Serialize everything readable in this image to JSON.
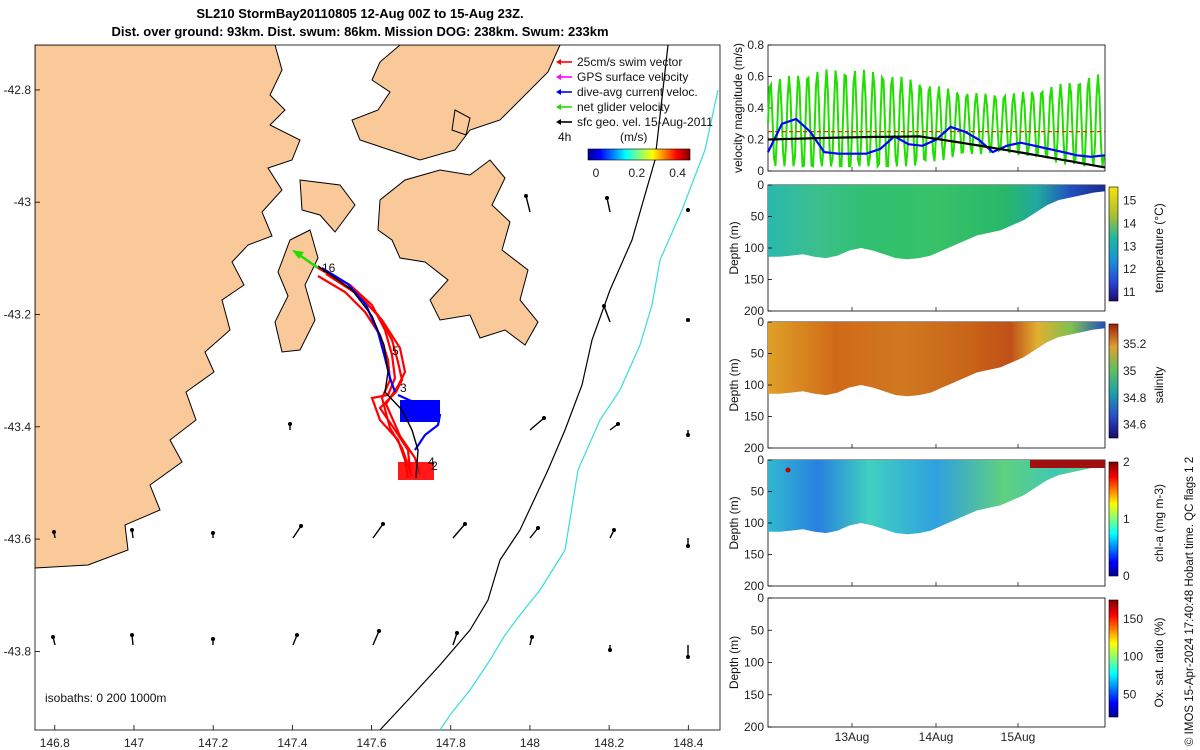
{
  "title_line1": "SL210 StormBay20110805 12-Aug 00Z to 15-Aug 23Z.",
  "title_line2": "Dist. over ground: 93km. Dist. swum: 86km. Mission DOG: 238km. Swum: 233km",
  "credit": "© IMOS 15-Apr-2024 17:40:48 Hobart time. QC flags 1  2",
  "colors": {
    "land": "#f9c99a",
    "sea": "#ffffff",
    "track_red": "#ff0000",
    "track_blue": "#0000ff",
    "net_green": "#22dd00",
    "isobath_200": "#000000",
    "isobath_1000": "#33dddd"
  },
  "chart_data": [
    {
      "type": "map",
      "name": "glider-track-map",
      "x_ticks": [
        "146.8",
        "147",
        "147.2",
        "147.4",
        "147.6",
        "147.8",
        "148",
        "148.2",
        "148.4"
      ],
      "y_ticks": [
        "-42.8",
        "-43",
        "-43.2",
        "-43.4",
        "-43.6",
        "-43.8"
      ],
      "xlim": [
        146.75,
        148.48
      ],
      "ylim": [
        -43.94,
        -42.72
      ],
      "legend": [
        {
          "label": "25cm/s swim vector",
          "color": "#ff0000"
        },
        {
          "label": "GPS surface velocity",
          "color": "#ff00ff"
        },
        {
          "label": "dive-avg current veloc.",
          "color": "#0000ff"
        },
        {
          "label": "net glider velocity",
          "color": "#22dd00"
        },
        {
          "label": "sfc geo. vel. 15-Aug-2011",
          "color": "#000000"
        }
      ],
      "speed_scale_label": "4h",
      "colorbar": {
        "title": "(m/s)",
        "ticks": [
          "0",
          "0.2",
          "0.4"
        ],
        "range": [
          0,
          0.5
        ]
      },
      "track_labels": [
        "16",
        "5",
        "3",
        "4",
        "2"
      ],
      "isobaths_label": "isobaths: 0   200  1000m"
    },
    {
      "type": "line",
      "name": "velocity-magnitude",
      "ylabel": "velocity magnitude (m/s)",
      "ylim": [
        0,
        0.8
      ],
      "y_ticks": [
        "0",
        "0.2",
        "0.4",
        "0.6",
        "0.8"
      ],
      "series": [
        {
          "name": "swim speed",
          "color": "#22dd00"
        },
        {
          "name": "dive-avg current",
          "color": "#0000ff",
          "values": [
            0.12,
            0.3,
            0.33,
            0.25,
            0.12,
            0.11,
            0.11,
            0.11,
            0.14,
            0.22,
            0.17,
            0.16,
            0.2,
            0.28,
            0.25,
            0.2,
            0.12,
            0.16,
            0.18,
            0.16,
            0.14,
            0.12,
            0.1,
            0.09,
            0.1
          ]
        },
        {
          "name": "net glider velocity",
          "color": "#000000"
        },
        {
          "name": "reference 0.25 m/s",
          "color": "#dd3300",
          "values": [
            0.25
          ]
        }
      ]
    },
    {
      "type": "heatmap",
      "name": "temperature-section",
      "ylabel": "Depth (m)",
      "y_ticks": [
        "0",
        "50",
        "100",
        "150",
        "200"
      ],
      "colorbar_label": "temperature (°C)",
      "colorbar_ticks": [
        "11",
        "12",
        "13",
        "14",
        "15"
      ],
      "range": [
        10.6,
        15.6
      ]
    },
    {
      "type": "heatmap",
      "name": "salinity-section",
      "ylabel": "Depth (m)",
      "y_ticks": [
        "0",
        "50",
        "100",
        "150",
        "200"
      ],
      "colorbar_label": "salinity",
      "colorbar_ticks": [
        "34.6",
        "34.8",
        "35",
        "35.2"
      ],
      "range": [
        34.5,
        35.35
      ]
    },
    {
      "type": "heatmap",
      "name": "chla-section",
      "ylabel": "Depth (m)",
      "y_ticks": [
        "0",
        "50",
        "100",
        "150",
        "200"
      ],
      "colorbar_label": "chl-a (mg m-3)",
      "colorbar_ticks": [
        "0",
        "1",
        "2"
      ],
      "range": [
        0,
        2
      ]
    },
    {
      "type": "heatmap",
      "name": "oxygen-section",
      "ylabel": "Depth (m)",
      "y_ticks": [
        "0",
        "50",
        "100",
        "150",
        "200"
      ],
      "x_ticks": [
        "13Aug",
        "14Aug",
        "15Aug"
      ],
      "colorbar_label": "Ox. sat. ratio (%)",
      "colorbar_ticks": [
        "50",
        "100",
        "150"
      ],
      "range": [
        20,
        175
      ]
    }
  ]
}
